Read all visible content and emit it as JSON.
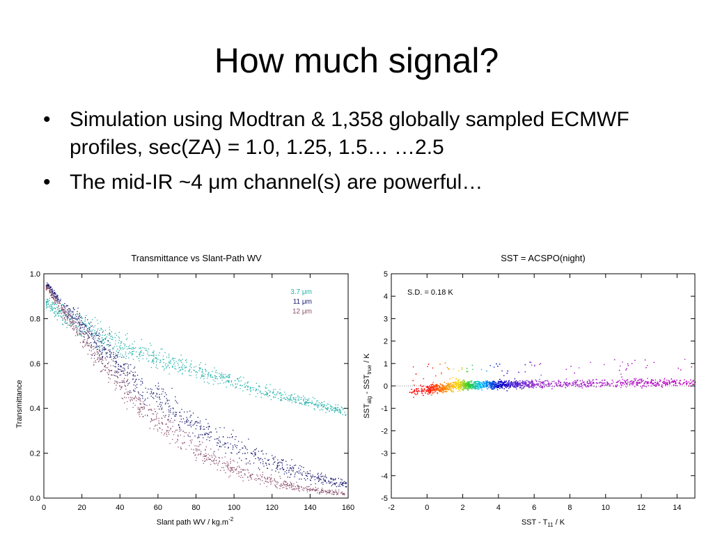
{
  "slide": {
    "title": "How much signal?",
    "bullets": [
      "Simulation using Modtran & 1,358 globally sampled ECMWF profiles, sec(ZA) = 1.0, 1.25, 1.5… …2.5",
      "The mid-IR ~4 μm channel(s) are powerful…"
    ],
    "bullet_glyph": "•"
  },
  "chart_data": [
    {
      "type": "scatter",
      "title": "Transmittance vs Slant-Path WV",
      "xlabel": "Slant path WV / kg.m",
      "xlabel_sup": "-2",
      "ylabel": "Transmittance",
      "xlim": [
        0,
        160
      ],
      "ylim": [
        0.0,
        1.0
      ],
      "xticks": [
        0,
        20,
        40,
        60,
        80,
        100,
        120,
        140,
        160
      ],
      "yticks": [
        0.0,
        0.2,
        0.4,
        0.6,
        0.8,
        1.0
      ],
      "ytick_labels": [
        "0.0",
        "0.2",
        "0.4",
        "0.6",
        "0.8",
        "1.0"
      ],
      "grid": false,
      "legend_position": "top-right",
      "series": [
        {
          "name": "3.7 μm",
          "color": "#20b2aa",
          "x": [
            2,
            5,
            10,
            20,
            30,
            40,
            50,
            60,
            70,
            80,
            90,
            100,
            110,
            120,
            130,
            140,
            150,
            160
          ],
          "y": [
            0.87,
            0.85,
            0.81,
            0.76,
            0.72,
            0.68,
            0.65,
            0.62,
            0.595,
            0.57,
            0.545,
            0.52,
            0.495,
            0.47,
            0.45,
            0.43,
            0.405,
            0.38
          ],
          "spread": [
            0.02,
            0.03,
            0.05,
            0.06,
            0.06,
            0.05,
            0.05,
            0.045,
            0.04,
            0.04,
            0.035,
            0.035,
            0.03,
            0.03,
            0.025,
            0.025,
            0.02,
            0.02
          ]
        },
        {
          "name": "11 μm",
          "color": "#191970",
          "x": [
            2,
            5,
            10,
            20,
            30,
            40,
            50,
            60,
            70,
            80,
            90,
            100,
            110,
            120,
            130,
            140,
            150,
            160
          ],
          "y": [
            0.95,
            0.91,
            0.86,
            0.77,
            0.68,
            0.59,
            0.51,
            0.44,
            0.38,
            0.32,
            0.27,
            0.23,
            0.19,
            0.16,
            0.13,
            0.1,
            0.08,
            0.06
          ],
          "spread": [
            0.01,
            0.02,
            0.03,
            0.05,
            0.06,
            0.07,
            0.07,
            0.07,
            0.065,
            0.06,
            0.055,
            0.05,
            0.045,
            0.04,
            0.035,
            0.03,
            0.025,
            0.02
          ]
        },
        {
          "name": "12 μm",
          "color": "#8b4f6b",
          "x": [
            2,
            5,
            10,
            20,
            30,
            40,
            50,
            60,
            70,
            80,
            90,
            100,
            110,
            120,
            130,
            140,
            150,
            160
          ],
          "y": [
            0.94,
            0.89,
            0.83,
            0.72,
            0.61,
            0.51,
            0.42,
            0.34,
            0.28,
            0.22,
            0.17,
            0.13,
            0.1,
            0.075,
            0.055,
            0.04,
            0.03,
            0.02
          ],
          "spread": [
            0.01,
            0.02,
            0.03,
            0.05,
            0.06,
            0.06,
            0.06,
            0.055,
            0.05,
            0.045,
            0.04,
            0.035,
            0.03,
            0.025,
            0.02,
            0.015,
            0.012,
            0.01
          ]
        }
      ]
    },
    {
      "type": "scatter",
      "title": "SST = ACSPO(night)",
      "xlabel": "SST - T",
      "xlabel_sub": "11",
      "xlabel_tail": " / K",
      "ylabel": "SST",
      "ylabel_sub1": "alg",
      "ylabel_mid": " - SST",
      "ylabel_sub2": "true",
      "ylabel_tail": " / K",
      "annotation": "S.D. = 0.18 K",
      "xlim": [
        -2,
        15
      ],
      "ylim": [
        -5,
        5
      ],
      "xticks": [
        -2,
        0,
        2,
        4,
        6,
        8,
        10,
        12,
        14
      ],
      "yticks": [
        -5,
        -4,
        -3,
        -2,
        -1,
        0,
        1,
        2,
        3,
        4,
        5
      ],
      "grid": false,
      "zero_line": true,
      "x_range_of_points": [
        -1,
        15
      ],
      "color_stops": [
        {
          "x": 0.0,
          "color": "#ff0000"
        },
        {
          "x": 1.0,
          "color": "#ff8c00"
        },
        {
          "x": 1.7,
          "color": "#ffd700"
        },
        {
          "x": 2.3,
          "color": "#32cd32"
        },
        {
          "x": 3.0,
          "color": "#00bfff"
        },
        {
          "x": 4.0,
          "color": "#0000cd"
        },
        {
          "x": 6.0,
          "color": "#9932cc"
        },
        {
          "x": 15.0,
          "color": "#c000c0"
        }
      ]
    }
  ]
}
